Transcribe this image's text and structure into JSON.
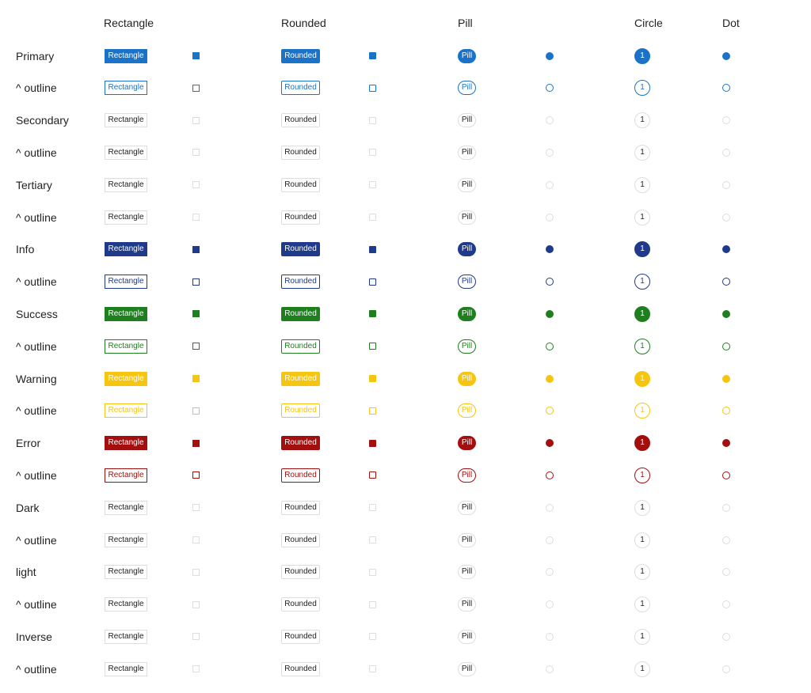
{
  "columns": {
    "rectangle": "Rectangle",
    "rounded": "Rounded",
    "pill": "Pill",
    "circle": "Circle",
    "dot": "Dot"
  },
  "badge_text": {
    "rectangle": "Rectangle",
    "rounded": "Rounded",
    "pill": "Pill",
    "circle": "1"
  },
  "rows": [
    {
      "label": "Primary",
      "variant": "primary",
      "outline": false,
      "color": "#1a73c8"
    },
    {
      "label": "^ outline",
      "variant": "primary",
      "outline": true,
      "color": "#1a73c8"
    },
    {
      "label": "Secondary",
      "variant": "secondary",
      "outline": false,
      "color": "#dddddd"
    },
    {
      "label": "^ outline",
      "variant": "secondary",
      "outline": true,
      "color": "#dddddd"
    },
    {
      "label": "Tertiary",
      "variant": "tertiary",
      "outline": false,
      "color": "#dddddd"
    },
    {
      "label": "^ outline",
      "variant": "tertiary",
      "outline": true,
      "color": "#dddddd"
    },
    {
      "label": "Info",
      "variant": "info",
      "outline": false,
      "color": "#1f3a8a"
    },
    {
      "label": "^ outline",
      "variant": "info",
      "outline": true,
      "color": "#1f3a8a"
    },
    {
      "label": "Success",
      "variant": "success",
      "outline": false,
      "color": "#1e7f1e"
    },
    {
      "label": "^ outline",
      "variant": "success",
      "outline": true,
      "color": "#1e7f1e"
    },
    {
      "label": "Warning",
      "variant": "warning",
      "outline": false,
      "color": "#f6c510"
    },
    {
      "label": "^ outline",
      "variant": "warning",
      "outline": true,
      "color": "#f6c510"
    },
    {
      "label": "Error",
      "variant": "error",
      "outline": false,
      "color": "#a30f0f"
    },
    {
      "label": "^ outline",
      "variant": "error",
      "outline": true,
      "color": "#a30f0f"
    },
    {
      "label": "Dark",
      "variant": "dark",
      "outline": false,
      "color": "#dddddd"
    },
    {
      "label": "^ outline",
      "variant": "dark",
      "outline": true,
      "color": "#dddddd"
    },
    {
      "label": "light",
      "variant": "light",
      "outline": false,
      "color": "#dddddd"
    },
    {
      "label": "^ outline",
      "variant": "light",
      "outline": true,
      "color": "#dddddd"
    },
    {
      "label": "Inverse",
      "variant": "inverse",
      "outline": false,
      "color": "#dddddd"
    },
    {
      "label": "^ outline",
      "variant": "inverse",
      "outline": true,
      "color": "#dddddd"
    }
  ]
}
